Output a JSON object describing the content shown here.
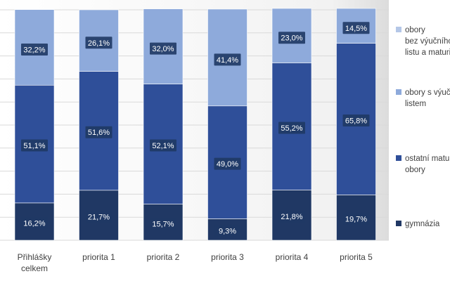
{
  "chart_data": {
    "type": "bar",
    "stacked": true,
    "percent": true,
    "categories": [
      "Přihlášky celkem",
      "priorita 1",
      "priorita 2",
      "priorita 3",
      "priorita 4",
      "priorita 5"
    ],
    "category_lines": [
      [
        "Přihlášky",
        "celkem"
      ],
      [
        "priorita 1"
      ],
      [
        "priorita 2"
      ],
      [
        "priorita 3"
      ],
      [
        "priorita 4"
      ],
      [
        "priorita 5"
      ]
    ],
    "series": [
      {
        "name": "gymnázia",
        "color": "#203864",
        "values": [
          16.2,
          21.7,
          15.7,
          9.3,
          21.8,
          19.7
        ],
        "labels": [
          "16,2%",
          "21,7%",
          "15,7%",
          "9,3%",
          "21,8%",
          "19,7%"
        ]
      },
      {
        "name": "ostatní maturitní obory",
        "color": "#2f4f99",
        "values": [
          51.1,
          51.6,
          52.1,
          49.0,
          55.2,
          65.8
        ],
        "labels": [
          "51,1%",
          "51,6%",
          "52,1%",
          "49,0%",
          "55,2%",
          "65,8%"
        ]
      },
      {
        "name": "obory s výučním listem",
        "color": "#8eaadb",
        "values": [
          32.2,
          26.1,
          32.0,
          41.4,
          23.0,
          14.5
        ],
        "labels": [
          "32,2%",
          "26,1%",
          "32,0%",
          "41,4%",
          "23,0%",
          "14,5%"
        ]
      }
    ],
    "legend": [
      {
        "lines": [
          "obory",
          "bez výučního",
          "listu a maturity"
        ],
        "color": "#b4c7e7"
      },
      {
        "lines": [
          "obory s výučním",
          "listem"
        ],
        "color": "#8eaadb"
      },
      {
        "lines": [
          "ostatní maturitní",
          "obory"
        ],
        "color": "#2f4f99"
      },
      {
        "lines": [
          "gymnázia"
        ],
        "color": "#203864"
      }
    ],
    "ylim": [
      0,
      100
    ],
    "grid": true,
    "legend_position": "right"
  }
}
